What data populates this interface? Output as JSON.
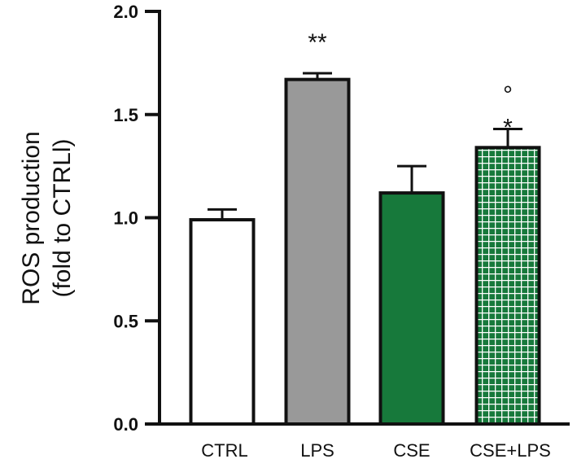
{
  "chart_data": {
    "type": "bar",
    "categories": [
      "CTRL",
      "LPS",
      "CSE",
      "CSE+LPS"
    ],
    "values": [
      0.99,
      1.67,
      1.12,
      1.34
    ],
    "errors": [
      0.05,
      0.03,
      0.13,
      0.09
    ],
    "annotations": [
      {
        "category": "LPS",
        "marks": [
          "**"
        ]
      },
      {
        "category": "CSE+LPS",
        "marks": [
          "°",
          "*"
        ]
      }
    ],
    "ylabel_lines": [
      "ROS production",
      "(fold to CTRLl)"
    ],
    "ylim": [
      0.0,
      2.0
    ],
    "yticks": [
      "0.0",
      "0.5",
      "1.0",
      "1.5",
      "2.0"
    ],
    "bar_styles": [
      {
        "fill": "#ffffff",
        "pattern": "none"
      },
      {
        "fill": "#999999",
        "pattern": "none"
      },
      {
        "fill": "#17793b",
        "pattern": "none"
      },
      {
        "fill": "#17793b",
        "pattern": "white-grid"
      }
    ],
    "grid": false,
    "legend": "none"
  }
}
